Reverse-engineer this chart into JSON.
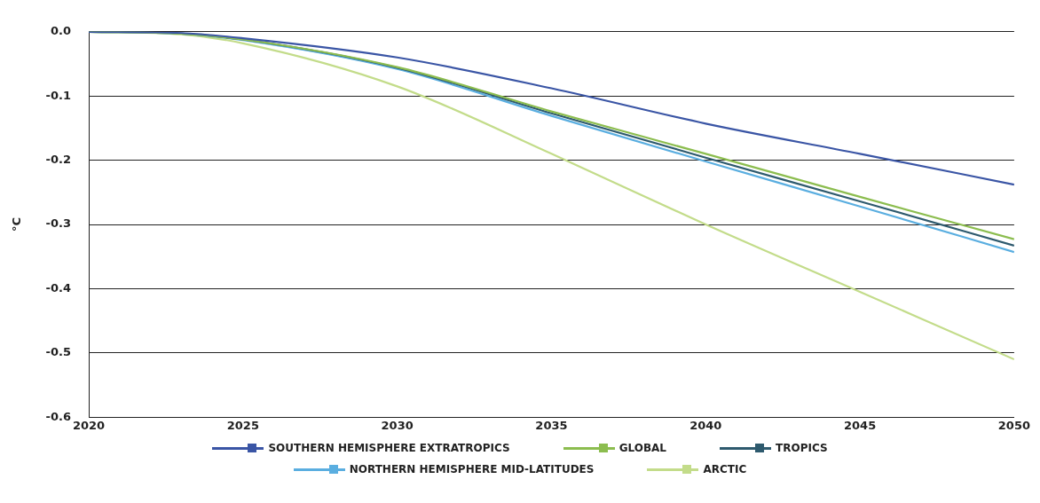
{
  "chart_data": {
    "type": "line",
    "ylabel": "°C",
    "x": [
      2020,
      2023,
      2025,
      2030,
      2035,
      2040,
      2045,
      2050
    ],
    "series": [
      {
        "name": "SOUTHERN HEMISPHERE EXTRATROPICS",
        "color": "#3a55a5",
        "values": [
          0,
          -0.002,
          -0.01,
          -0.04,
          -0.088,
          -0.143,
          -0.19,
          -0.238
        ]
      },
      {
        "name": "GLOBAL",
        "color": "#8cbd4f",
        "values": [
          0,
          -0.003,
          -0.012,
          -0.055,
          -0.124,
          -0.19,
          -0.257,
          -0.323
        ]
      },
      {
        "name": "TROPICS",
        "color": "#2e5a6e",
        "values": [
          0,
          -0.003,
          -0.012,
          -0.056,
          -0.127,
          -0.196,
          -0.264,
          -0.333
        ]
      },
      {
        "name": "NORTHERN HEMISPHERE MID-LATITUDES",
        "color": "#5aaee0",
        "values": [
          0,
          -0.003,
          -0.013,
          -0.058,
          -0.131,
          -0.202,
          -0.272,
          -0.343
        ]
      },
      {
        "name": "ARCTIC",
        "color": "#c3dc8a",
        "values": [
          0,
          -0.004,
          -0.018,
          -0.085,
          -0.19,
          -0.3,
          -0.405,
          -0.51
        ]
      }
    ],
    "xlim": [
      2020,
      2050
    ],
    "xticks": [
      2020,
      2025,
      2030,
      2035,
      2040,
      2045,
      2050
    ],
    "ylim": [
      -0.6,
      0
    ],
    "yticks": [
      {
        "value": 0,
        "label": "0.0"
      },
      -0.1,
      -0.2,
      -0.3,
      -0.4,
      -0.5,
      -0.6
    ],
    "grid": "y",
    "legend": "bottom",
    "marker": "none",
    "line_style": "solid"
  }
}
